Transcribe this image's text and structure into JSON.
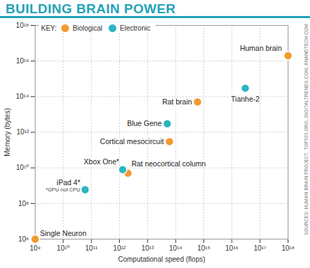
{
  "chart_data": {
    "type": "scatter",
    "title": "BUILDING BRAIN POWER",
    "x_label": "Computational speed (flops)",
    "y_label": "Memory (bytes)",
    "source": "SOURCES: HUMAN BRAIN PROJECT, TOP500.ORG, DIGITALTRENDS.COM, ANANDTECH.COM",
    "log": true,
    "grid": true,
    "legend": "top-left",
    "legend_title": "KEY:",
    "marker": "circle",
    "xlim": [
      1000000000.0,
      1e+18
    ],
    "ylim": [
      1000000.0,
      1e+18
    ],
    "xticks": [
      {
        "value": 1000000000.0,
        "label": "10⁹"
      },
      {
        "value": 10000000000.0,
        "label": "10¹⁰"
      },
      {
        "value": 100000000000.0,
        "label": "10¹¹"
      },
      {
        "value": 1000000000000.0,
        "label": "10¹²"
      },
      {
        "value": 10000000000000.0,
        "label": "10¹³"
      },
      {
        "value": 100000000000000.0,
        "label": "10¹⁴"
      },
      {
        "value": 1000000000000000.0,
        "label": "10¹⁵"
      },
      {
        "value": 1e+16,
        "label": "10¹⁶"
      },
      {
        "value": 1e+17,
        "label": "10¹⁷"
      },
      {
        "value": 1e+18,
        "label": "10¹⁸"
      }
    ],
    "yticks": [
      {
        "value": 1000000.0,
        "label": "10⁶"
      },
      {
        "value": 100000000.0,
        "label": "10⁸"
      },
      {
        "value": 10000000000.0,
        "label": "10¹⁰"
      },
      {
        "value": 1000000000000.0,
        "label": "10¹²"
      },
      {
        "value": 100000000000000.0,
        "label": "10¹⁴"
      },
      {
        "value": 1e+16,
        "label": "10¹⁶"
      },
      {
        "value": 1e+18,
        "label": "10¹⁸"
      }
    ],
    "series": [
      {
        "name": "Biological",
        "color": "#f39a2e",
        "labels": [
          "Single Neuron",
          "Rat neocortical column",
          "Cortical mesocircuit",
          "Rat brain",
          "Human brain"
        ],
        "x": [
          1000000000.0,
          2000000000000.0,
          60000000000000.0,
          600000000000000.0,
          1e+18
        ],
        "y": [
          1000000.0,
          5000000000.0,
          300000000000.0,
          50000000000000.0,
          2e+16
        ]
      },
      {
        "name": "Electronic",
        "color": "#2bb5c4",
        "labels": [
          "iPad 4*",
          "Xbox One*",
          "Blue Gene",
          "Tianhe-2"
        ],
        "x": [
          60000000000.0,
          1300000000000.0,
          50000000000000.0,
          3e+16
        ],
        "y": [
          600000000.0,
          8000000000.0,
          3000000000000.0,
          300000000000000.0
        ]
      }
    ],
    "annotations": [
      {
        "text": "*GPU not CPU",
        "point": "iPad 4*"
      }
    ]
  }
}
